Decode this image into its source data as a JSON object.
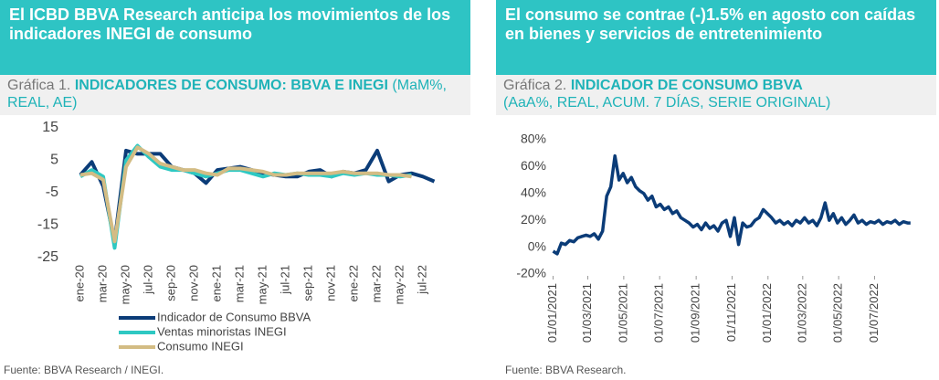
{
  "chart_data": [
    {
      "type": "line",
      "header": "El ICBD BBVA Research anticipa los movimientos de los indicadores INEGI de consumo",
      "label": "Gráfica 1.",
      "title": "INDICADORES DE CONSUMO: BBVA E INEGI",
      "subtitle": "(MaM%, REAL, AE)",
      "source": "Fuente: BBVA Research / INEGI.",
      "categories": [
        "ene-20",
        null,
        "mar-20",
        null,
        "may-20",
        null,
        "jul-20",
        null,
        "sep-20",
        null,
        "nov-20",
        null,
        "ene-21",
        null,
        "mar-21",
        null,
        "may-21",
        null,
        "jul-21",
        null,
        "sep-21",
        null,
        "nov-21",
        null,
        "ene-22",
        null,
        "mar-22",
        null,
        "may-22",
        null,
        "jul-22",
        null
      ],
      "series": [
        {
          "name": "Indicador de Consumo BBVA",
          "color": "#0b3c78",
          "values": [
            0.5,
            4.5,
            -3,
            -20,
            8,
            7,
            7,
            7,
            3,
            2,
            1,
            -2,
            2,
            2.5,
            3,
            2,
            1,
            0.5,
            0,
            0,
            1.5,
            2,
            0,
            1.5,
            1,
            2,
            8,
            -1.5,
            0.5,
            1,
            0,
            -1.5
          ]
        },
        {
          "name": "Ventas minoristas INEGI",
          "color": "#2ec8c2",
          "values": [
            0,
            2,
            0,
            -22,
            5,
            9.5,
            6,
            3,
            2,
            2,
            1,
            0,
            1,
            2,
            2,
            1,
            0,
            1,
            0.5,
            1,
            0.5,
            0.5,
            0,
            1,
            0.5,
            1,
            0.5,
            0.5,
            0,
            0.5,
            null,
            null
          ]
        },
        {
          "name": "Consumo INEGI",
          "color": "#d3bc84",
          "values": [
            0.5,
            1,
            -1,
            -20,
            3,
            9,
            7,
            4,
            3,
            2,
            2,
            1,
            0.5,
            2.5,
            2.5,
            2,
            1.5,
            0.5,
            0.5,
            1,
            1,
            1,
            1,
            1.5,
            1,
            1,
            1,
            0.5,
            0.5,
            0,
            null,
            null
          ]
        }
      ],
      "ylim": [
        -25,
        15
      ],
      "yticks": [
        15,
        5,
        -5,
        -15,
        -25
      ],
      "grid": false,
      "legend": "bottom"
    },
    {
      "type": "line",
      "header": "El consumo se contrae (-)1.5% en agosto con caídas en bienes y servicios de entretenimiento",
      "label": "Gráfica 2.",
      "title": "INDICADOR DE CONSUMO BBVA",
      "subtitle": "(AaA%, REAL, ACUM. 7 DÍAS, SERIE ORIGINAL)",
      "source": "Fuente: BBVA Research.",
      "series": [
        {
          "color": "#0b3c78",
          "x": [
            "2021-01-01",
            "2021-01-08",
            "2021-01-15",
            "2021-01-22",
            "2021-01-29",
            "2021-02-05",
            "2021-02-12",
            "2021-02-19",
            "2021-02-26",
            "2021-03-05",
            "2021-03-12",
            "2021-03-19",
            "2021-03-26",
            "2021-04-02",
            "2021-04-09",
            "2021-04-16",
            "2021-04-23",
            "2021-04-30",
            "2021-05-07",
            "2021-05-14",
            "2021-05-21",
            "2021-05-28",
            "2021-06-04",
            "2021-06-11",
            "2021-06-18",
            "2021-06-25",
            "2021-07-02",
            "2021-07-09",
            "2021-07-16",
            "2021-07-23",
            "2021-07-30",
            "2021-08-06",
            "2021-08-13",
            "2021-08-20",
            "2021-08-27",
            "2021-09-03",
            "2021-09-10",
            "2021-09-17",
            "2021-09-24",
            "2021-10-01",
            "2021-10-08",
            "2021-10-15",
            "2021-10-22",
            "2021-10-29",
            "2021-11-05",
            "2021-11-12",
            "2021-11-19",
            "2021-11-26",
            "2021-12-03",
            "2021-12-10",
            "2021-12-17",
            "2021-12-24",
            "2021-12-31",
            "2022-01-07",
            "2022-01-14",
            "2022-01-21",
            "2022-01-28",
            "2022-02-04",
            "2022-02-11",
            "2022-02-18",
            "2022-02-25",
            "2022-03-04",
            "2022-03-11",
            "2022-03-18",
            "2022-03-25",
            "2022-04-01",
            "2022-04-08",
            "2022-04-15",
            "2022-04-22",
            "2022-04-29",
            "2022-05-06",
            "2022-05-13",
            "2022-05-20",
            "2022-05-27",
            "2022-06-03",
            "2022-06-10",
            "2022-06-17",
            "2022-06-24",
            "2022-07-01",
            "2022-07-08",
            "2022-07-15",
            "2022-07-22",
            "2022-07-29",
            "2022-08-05",
            "2022-08-12",
            "2022-08-19",
            "2022-08-26",
            "2022-08-31"
          ],
          "values": [
            -3,
            -5,
            3,
            2,
            5,
            4,
            7,
            8,
            9,
            8,
            10,
            6,
            12,
            38,
            45,
            68,
            50,
            55,
            48,
            52,
            45,
            42,
            40,
            35,
            38,
            30,
            32,
            28,
            30,
            25,
            27,
            22,
            20,
            18,
            15,
            17,
            13,
            18,
            14,
            16,
            12,
            18,
            20,
            8,
            22,
            2,
            18,
            15,
            16,
            20,
            22,
            28,
            25,
            22,
            18,
            20,
            17,
            19,
            16,
            20,
            18,
            22,
            18,
            20,
            16,
            22,
            33,
            20,
            25,
            18,
            22,
            17,
            20,
            24,
            18,
            20,
            17,
            19,
            18,
            20,
            17,
            19,
            18,
            20,
            17,
            19,
            18,
            18
          ]
        }
      ],
      "xlim": [
        "2020-12-25",
        "2022-09-05"
      ],
      "xticks": [
        {
          "value": "2021-01-01",
          "label": "01/01/2021"
        },
        {
          "value": "2021-03-01",
          "label": "01/03/2021"
        },
        {
          "value": "2021-05-01",
          "label": "01/05/2021"
        },
        {
          "value": "2021-07-01",
          "label": "01/07/2021"
        },
        {
          "value": "2021-09-01",
          "label": "01/09/2021"
        },
        {
          "value": "2021-11-01",
          "label": "01/11/2021"
        },
        {
          "value": "2022-01-01",
          "label": "01/01/2022"
        },
        {
          "value": "2022-03-01",
          "label": "01/03/2022"
        },
        {
          "value": "2022-05-01",
          "label": "01/05/2022"
        },
        {
          "value": "2022-07-01",
          "label": "01/07/2022"
        }
      ],
      "ylim": [
        -20,
        80
      ],
      "yticks": [
        {
          "value": 80,
          "label": "80%"
        },
        {
          "value": 60,
          "label": "60%"
        },
        {
          "value": 40,
          "label": "40%"
        },
        {
          "value": 20,
          "label": "20%"
        },
        {
          "value": 0,
          "label": "0%"
        },
        {
          "value": -20,
          "label": "-20%"
        }
      ],
      "grid": false
    }
  ]
}
